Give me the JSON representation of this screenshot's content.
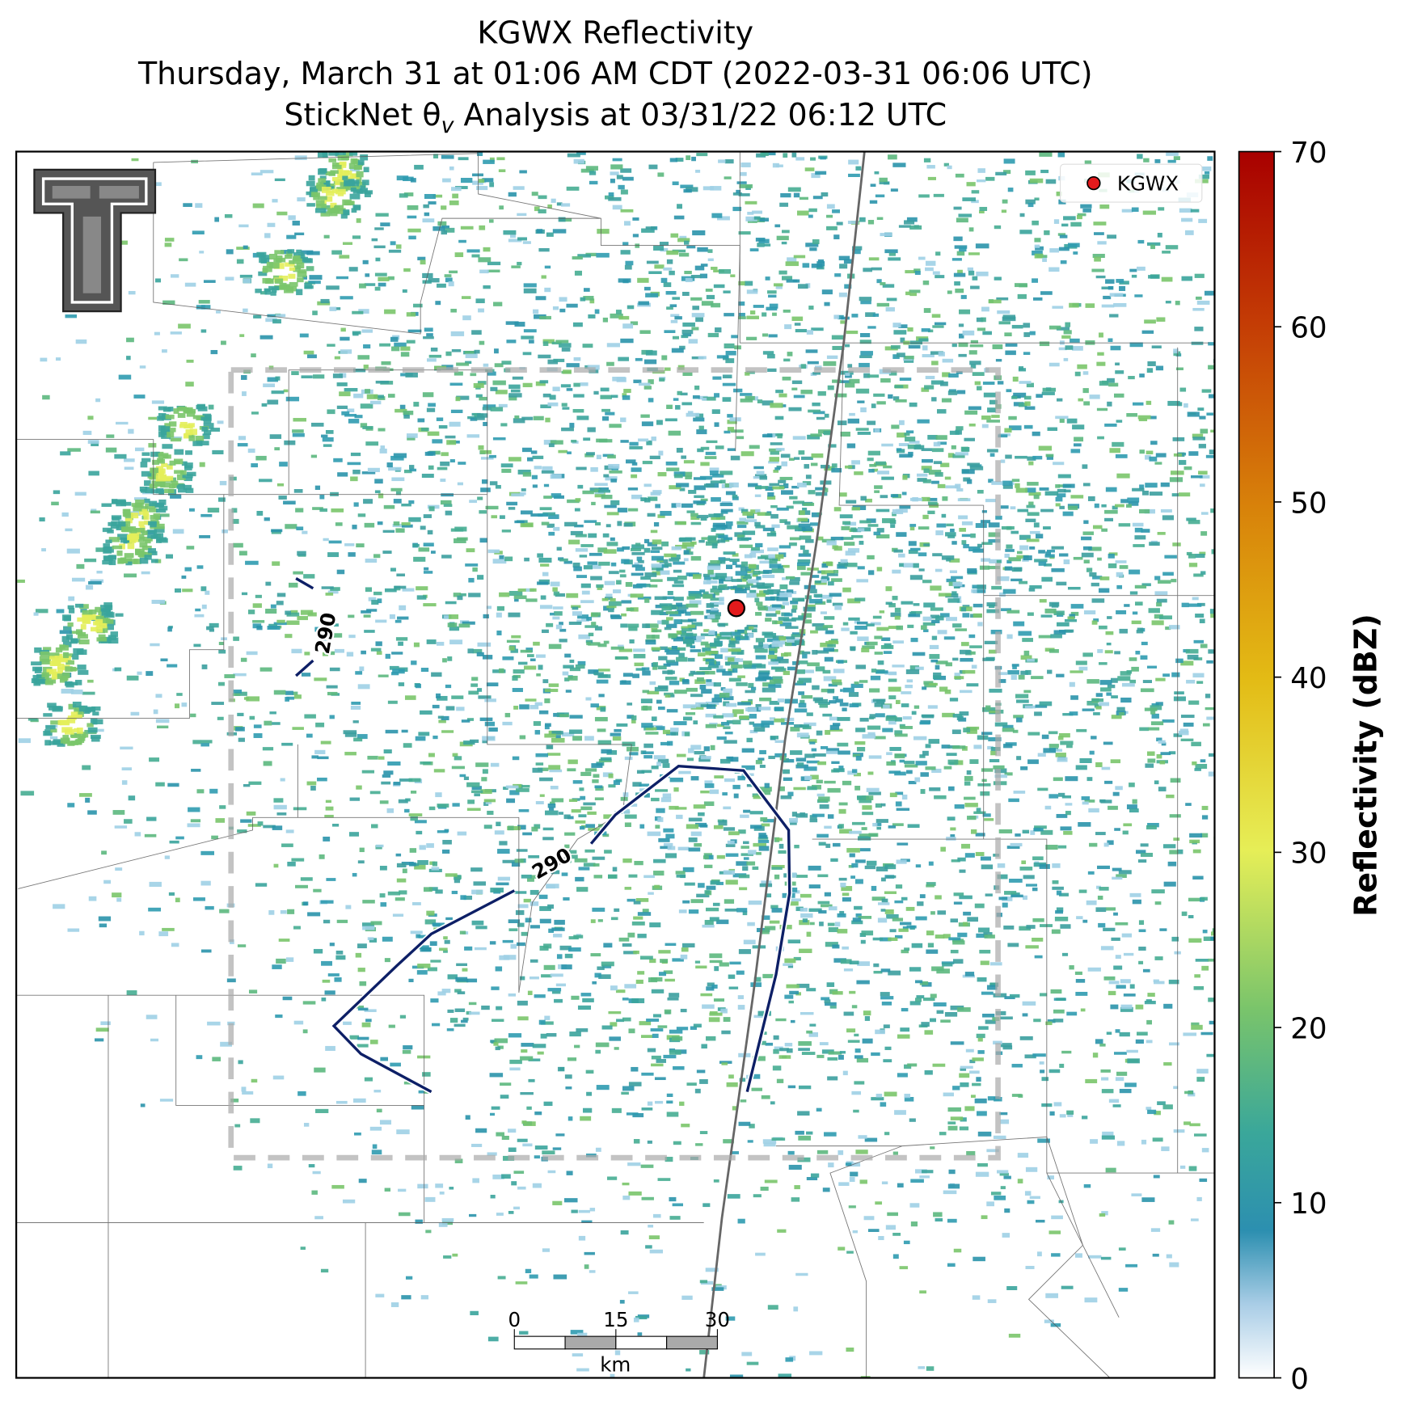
{
  "title": {
    "lines": [
      "KGWX Reflectivity",
      "Thursday, March 31 at 01:06 AM CDT (2022-03-31 06:06 UTC)"
    ],
    "analysis_parts": [
      "StickNet θ",
      "v",
      " Analysis at 03/31/22 06:12 UTC"
    ]
  },
  "legend": {
    "label": "KGWX",
    "color": "#e31a1c"
  },
  "contours": [
    {
      "value": 290
    },
    {
      "value": 290
    }
  ],
  "colorbar": {
    "label": "Reflectivity (dBZ)",
    "lim": [
      0,
      70
    ],
    "ticks": [
      0,
      10,
      20,
      30,
      40,
      50,
      60,
      70
    ]
  },
  "scalebar": {
    "unit": "km",
    "lim": [
      0,
      30
    ],
    "ticks": [
      0,
      15,
      30
    ]
  }
}
